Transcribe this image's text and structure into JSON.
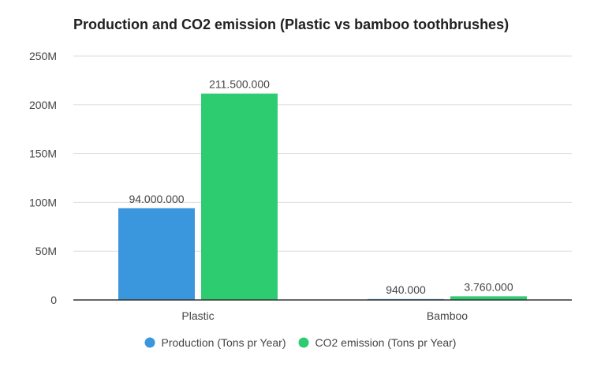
{
  "chart_data": {
    "type": "bar",
    "title": "Production and CO2 emission (Plastic vs bamboo toothbrushes)",
    "xlabel": "",
    "ylabel": "",
    "categories": [
      "Plastic",
      "Bamboo"
    ],
    "series": [
      {
        "name": "Production (Tons pr Year)",
        "color": "#3a96dd",
        "values": [
          94000000,
          940000
        ],
        "labels": [
          "94.000.000",
          "940.000"
        ]
      },
      {
        "name": "CO2 emission (Tons pr Year)",
        "color": "#2ecc71",
        "values": [
          211500000,
          3760000
        ],
        "labels": [
          "211.500.000",
          "3.760.000"
        ]
      }
    ],
    "ylim": [
      0,
      250000000
    ],
    "yticks": [
      {
        "value": 0,
        "label": "0"
      },
      {
        "value": 50000000,
        "label": "50M"
      },
      {
        "value": 100000000,
        "label": "100M"
      },
      {
        "value": 150000000,
        "label": "150M"
      },
      {
        "value": 200000000,
        "label": "200M"
      },
      {
        "value": 250000000,
        "label": "250M"
      }
    ],
    "grid": true,
    "legend_position": "bottom"
  }
}
